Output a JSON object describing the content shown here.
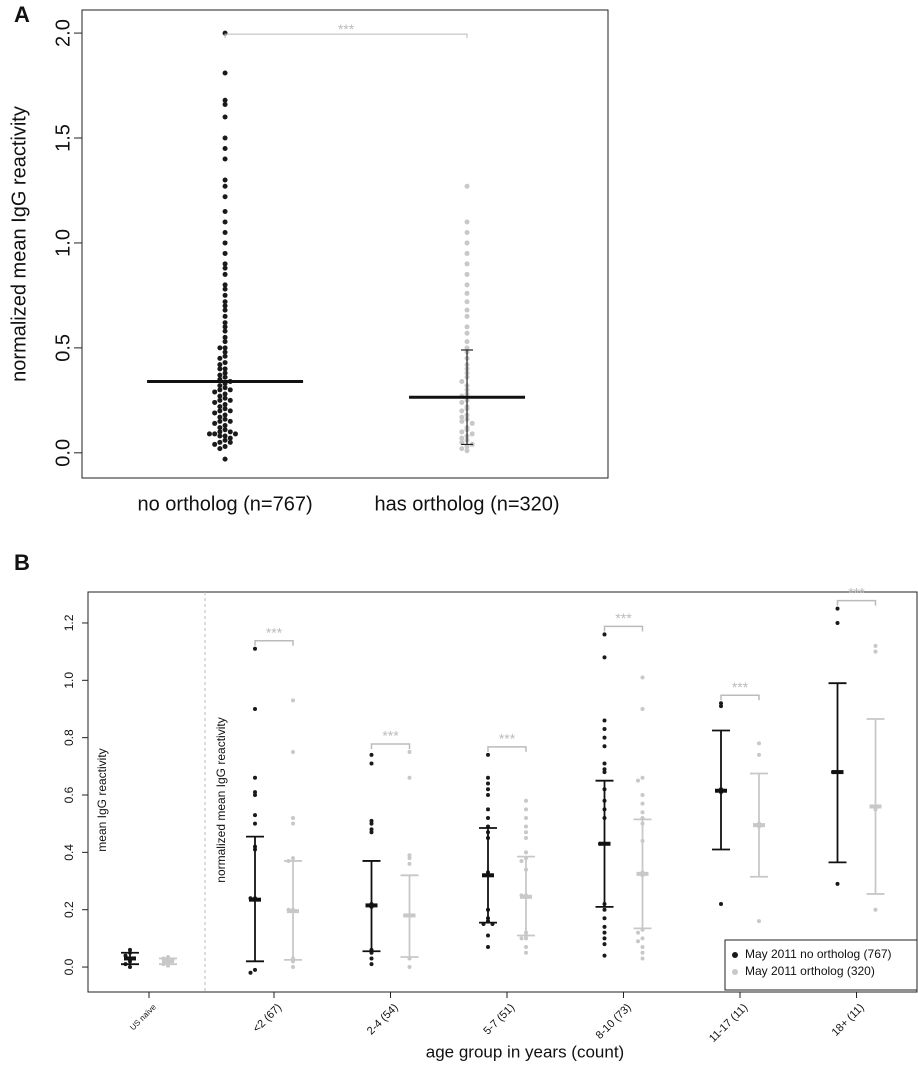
{
  "chart_data": [
    {
      "type": "beeswarm",
      "panel": "A",
      "ylabel": "normalized mean IgG reactivity",
      "ylim": [
        -0.12,
        2.11
      ],
      "yticks": [
        {
          "value": 0,
          "label": "0.0"
        },
        0.5,
        {
          "value": 1,
          "label": "1.0"
        },
        1.5,
        {
          "value": 2,
          "label": "2.0"
        }
      ],
      "significance": "***",
      "series": [
        {
          "name": "no ortholog (n=767)",
          "color": "#1a1a1a",
          "mean": 0.34,
          "values": [
            2.0,
            1.81,
            1.68,
            1.66,
            1.6,
            1.5,
            1.45,
            1.4,
            1.3,
            1.27,
            1.22,
            1.15,
            1.1,
            1.05,
            1.0,
            0.95,
            0.9,
            0.88,
            0.85,
            0.8,
            0.78,
            0.75,
            0.72,
            0.7,
            0.68,
            0.65,
            0.62,
            0.6,
            0.58,
            0.55,
            0.53,
            0.5,
            0.5,
            0.48,
            0.46,
            0.45,
            0.43,
            0.42,
            0.4,
            0.4,
            0.38,
            0.37,
            0.36,
            0.35,
            0.34,
            0.33,
            0.32,
            0.31,
            0.3,
            0.3,
            0.29,
            0.28,
            0.27,
            0.26,
            0.25,
            0.25,
            0.24,
            0.23,
            0.22,
            0.21,
            0.2,
            0.2,
            0.19,
            0.18,
            0.17,
            0.16,
            0.15,
            0.15,
            0.14,
            0.13,
            0.12,
            0.11,
            0.1,
            0.1,
            0.09,
            0.09,
            0.09,
            0.08,
            0.08,
            0.07,
            0.06,
            0.05,
            0.05,
            0.04,
            0.03,
            0.02,
            -0.03
          ]
        },
        {
          "name": "has ortholog (n=320)",
          "color": "#c8c8c8",
          "mean": 0.265,
          "lower": 0.04,
          "upper": 0.49,
          "values": [
            1.27,
            1.1,
            1.05,
            1.0,
            0.95,
            0.9,
            0.85,
            0.8,
            0.76,
            0.72,
            0.68,
            0.65,
            0.6,
            0.57,
            0.53,
            0.5,
            0.48,
            0.45,
            0.42,
            0.4,
            0.38,
            0.36,
            0.34,
            0.32,
            0.3,
            0.28,
            0.27,
            0.25,
            0.24,
            0.22,
            0.21,
            0.2,
            0.18,
            0.17,
            0.16,
            0.15,
            0.14,
            0.12,
            0.11,
            0.1,
            0.09,
            0.08,
            0.07,
            0.06,
            0.05,
            0.04,
            0.03,
            0.02,
            0.01
          ]
        }
      ]
    },
    {
      "type": "group-dots",
      "panel": "B",
      "ylabel": "normalized mean IgG reactivity",
      "ylabel_left": "mean IgG reactivity",
      "xlabel": "age group in years (count)",
      "ylim": [
        -0.087,
        1.308
      ],
      "yticks": [
        {
          "value": 0,
          "label": "0.0"
        },
        0.2,
        0.4,
        0.6,
        0.8,
        {
          "value": 1,
          "label": "1.0"
        },
        1.2
      ],
      "legend": "bottom-right",
      "categories": [
        "US naïve",
        "<2 (67)",
        "2-4 (54)",
        "5-7 (51)",
        "8-10 (73)",
        "11-17 (11)",
        "18+ (11)"
      ],
      "significance": [
        null,
        "***",
        "***",
        "***",
        "***",
        "***",
        "***"
      ],
      "series": [
        {
          "name": "May 2011 no ortholog (767)",
          "color": "#1a1a1a",
          "mean": [
            0.03,
            0.235,
            0.215,
            0.32,
            0.43,
            0.615,
            0.68
          ],
          "lower": [
            0.01,
            0.02,
            0.055,
            0.155,
            0.21,
            0.41,
            0.365
          ],
          "upper": [
            0.05,
            0.455,
            0.37,
            0.485,
            0.65,
            0.825,
            0.99
          ],
          "points": [
            [
              0.06,
              0.05,
              0.04,
              0.03,
              0.02,
              0.01,
              0.0
            ],
            [
              1.11,
              0.9,
              0.66,
              0.61,
              0.6,
              0.53,
              0.5,
              0.42,
              0.41,
              0.24,
              0.24,
              -0.01,
              -0.02
            ],
            [
              0.74,
              0.71,
              0.51,
              0.5,
              0.48,
              0.47,
              0.22,
              0.21,
              0.06,
              0.05,
              0.03,
              0.01
            ],
            [
              0.74,
              0.66,
              0.64,
              0.62,
              0.6,
              0.55,
              0.52,
              0.49,
              0.47,
              0.45,
              0.33,
              0.32,
              0.2,
              0.17,
              0.16,
              0.15,
              0.15,
              0.11,
              0.07
            ],
            [
              1.16,
              1.08,
              0.86,
              0.83,
              0.8,
              0.77,
              0.71,
              0.69,
              0.68,
              0.62,
              0.58,
              0.55,
              0.52,
              0.43,
              0.43,
              0.22,
              0.2,
              0.17,
              0.14,
              0.12,
              0.1,
              0.08,
              0.04
            ],
            [
              0.92,
              0.91,
              0.62,
              0.61,
              0.22
            ],
            [
              1.25,
              1.2,
              0.68,
              0.68,
              0.29
            ]
          ]
        },
        {
          "name": "May 2011 ortholog (320)",
          "color": "#c8c8c8",
          "mean": [
            0.02,
            0.195,
            0.18,
            0.245,
            0.325,
            0.495,
            0.56
          ],
          "lower": [
            0.01,
            0.025,
            0.035,
            0.11,
            0.135,
            0.315,
            0.255
          ],
          "upper": [
            0.03,
            0.37,
            0.32,
            0.385,
            0.515,
            0.675,
            0.865
          ],
          "points": [
            [
              0.035,
              0.03,
              0.025,
              0.02,
              0.01,
              0.005
            ],
            [
              0.93,
              0.75,
              0.52,
              0.5,
              0.38,
              0.37,
              0.2,
              0.2,
              0.03,
              0.02,
              0.0
            ],
            [
              0.75,
              0.66,
              0.39,
              0.38,
              0.36,
              0.18,
              0.18,
              0.03,
              0.0
            ],
            [
              0.58,
              0.55,
              0.52,
              0.49,
              0.47,
              0.45,
              0.4,
              0.38,
              0.37,
              0.34,
              0.25,
              0.25,
              0.12,
              0.11,
              0.1,
              0.1,
              0.07,
              0.05
            ],
            [
              1.01,
              0.9,
              0.66,
              0.65,
              0.6,
              0.57,
              0.54,
              0.52,
              0.5,
              0.44,
              0.33,
              0.32,
              0.13,
              0.12,
              0.1,
              0.09,
              0.07,
              0.05,
              0.03
            ],
            [
              0.78,
              0.74,
              0.5,
              0.49,
              0.16
            ],
            [
              1.12,
              1.1,
              0.56,
              0.55,
              0.2
            ]
          ]
        }
      ]
    }
  ]
}
